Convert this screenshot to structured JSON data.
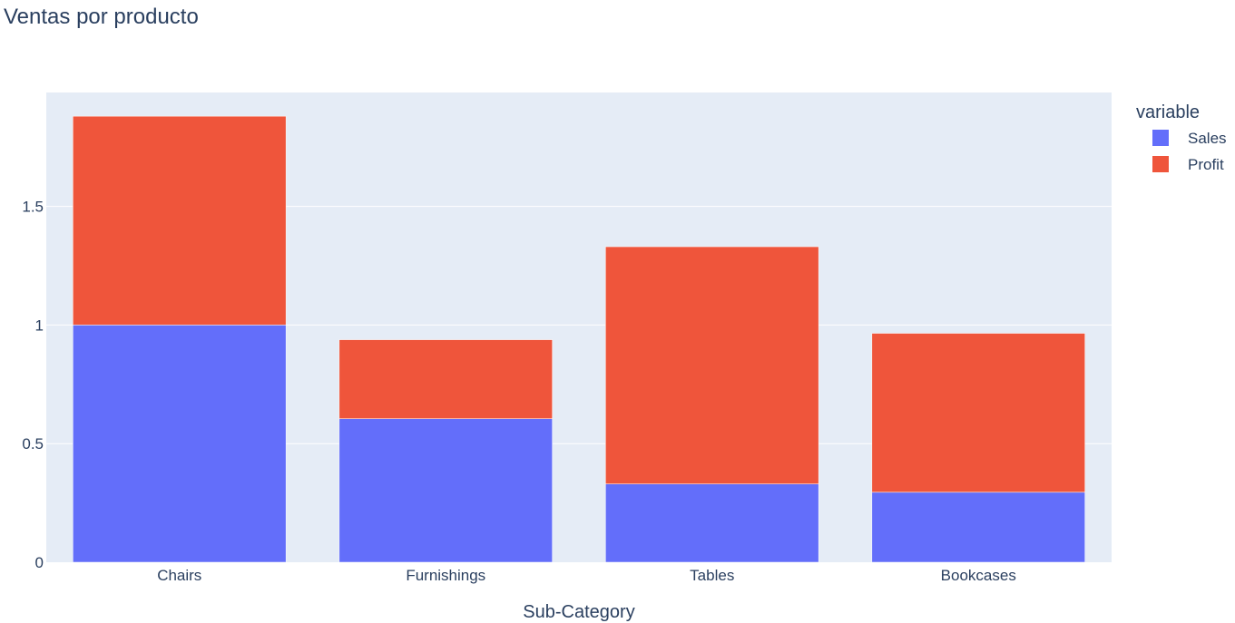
{
  "chart_data": {
    "type": "bar",
    "barmode": "stack",
    "title": "Ventas por producto",
    "xlabel": "Sub-Category",
    "ylabel": "",
    "categories": [
      "Chairs",
      "Furnishings",
      "Tables",
      "Bookcases"
    ],
    "series": [
      {
        "name": "Sales",
        "color": "#636efa",
        "values": [
          1.0,
          0.605,
          0.33,
          0.295
        ]
      },
      {
        "name": "Profit",
        "color": "#ef553b",
        "values": [
          0.88,
          0.333,
          1.0,
          0.67
        ]
      }
    ],
    "ylim": [
      0,
      1.98
    ],
    "yticks": [
      0,
      0.5,
      1,
      1.5
    ],
    "ytick_labels": [
      "0",
      "0.5",
      "1",
      "1.5"
    ],
    "grid": true,
    "legend": {
      "title": "variable",
      "placement": "top-right"
    },
    "plot_background": "#e5ecf6",
    "grid_color": "#ffffff"
  }
}
